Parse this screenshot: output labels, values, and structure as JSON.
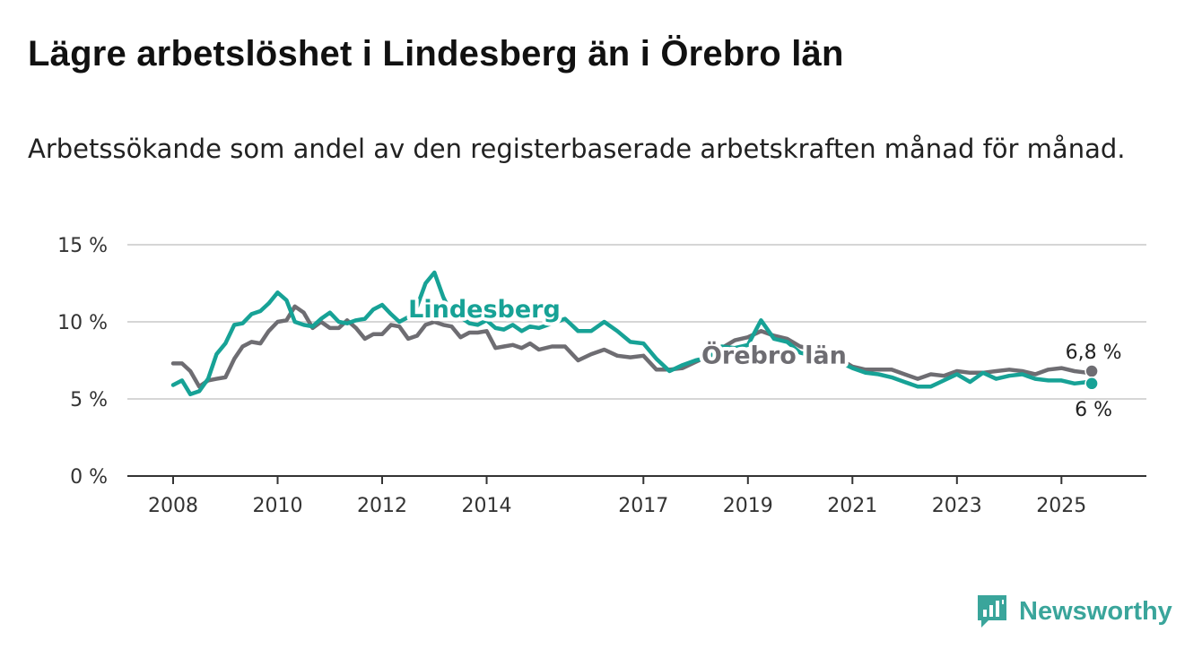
{
  "title": "Lägre arbetslöshet i Lindesberg än i Örebro län",
  "subtitle": "Arbetssökande som andel av den registerbaserade arbetskraften månad för månad.",
  "brand": {
    "name": "Newsworthy",
    "color": "#3aa59b"
  },
  "chart_data": {
    "type": "line",
    "title": "Lägre arbetslöshet i Lindesberg än i Örebro län",
    "ylim": [
      0,
      15
    ],
    "y_ticks": [
      {
        "value": 0,
        "label": "0 %"
      },
      {
        "value": 5,
        "label": "5 %"
      },
      {
        "value": 10,
        "label": "10 %"
      },
      {
        "value": 15,
        "label": "15 %"
      }
    ],
    "xlim": [
      2008.0,
      2025.75
    ],
    "x_ticks": [
      {
        "value": 2008,
        "label": "2008"
      },
      {
        "value": 2010,
        "label": "2010"
      },
      {
        "value": 2012,
        "label": "2012"
      },
      {
        "value": 2014,
        "label": "2014"
      },
      {
        "value": 2017,
        "label": "2017"
      },
      {
        "value": 2019,
        "label": "2019"
      },
      {
        "value": 2021,
        "label": "2021"
      },
      {
        "value": 2023,
        "label": "2023"
      },
      {
        "value": 2025,
        "label": "2025"
      }
    ],
    "grid": true,
    "series": [
      {
        "name": "Örebro län",
        "color": "#6e6d72",
        "end_label": "6,8 %",
        "x": [
          2008.0,
          2008.17,
          2008.33,
          2008.5,
          2008.67,
          2008.83,
          2009.0,
          2009.17,
          2009.33,
          2009.5,
          2009.67,
          2009.83,
          2010.0,
          2010.17,
          2010.33,
          2010.5,
          2010.67,
          2010.83,
          2011.0,
          2011.17,
          2011.33,
          2011.5,
          2011.67,
          2011.83,
          2012.0,
          2012.17,
          2012.33,
          2012.5,
          2012.67,
          2012.83,
          2013.0,
          2013.17,
          2013.33,
          2013.5,
          2013.67,
          2013.83,
          2014.0,
          2014.17,
          2014.33,
          2014.5,
          2014.67,
          2014.83,
          2015.0,
          2015.25,
          2015.5,
          2015.75,
          2016.0,
          2016.25,
          2016.5,
          2016.75,
          2017.0,
          2017.25,
          2017.5,
          2017.75,
          2018.0,
          2018.25,
          2018.5,
          2018.75,
          2019.0,
          2019.25,
          2019.5,
          2019.75,
          2020.0,
          2020.25,
          2020.5,
          2020.75,
          2021.0,
          2021.25,
          2021.5,
          2021.75,
          2022.0,
          2022.25,
          2022.5,
          2022.75,
          2023.0,
          2023.25,
          2023.5,
          2023.75,
          2024.0,
          2024.25,
          2024.5,
          2024.75,
          2025.0,
          2025.25,
          2025.5,
          2025.58
        ],
        "values": [
          7.3,
          7.3,
          6.8,
          5.8,
          6.2,
          6.3,
          6.4,
          7.6,
          8.4,
          8.7,
          8.6,
          9.4,
          10.0,
          10.1,
          11.0,
          10.6,
          9.6,
          10.0,
          9.6,
          9.6,
          10.1,
          9.6,
          8.9,
          9.2,
          9.2,
          9.8,
          9.7,
          8.9,
          9.1,
          9.8,
          10.0,
          9.8,
          9.7,
          9.0,
          9.3,
          9.3,
          9.4,
          8.3,
          8.4,
          8.5,
          8.3,
          8.6,
          8.2,
          8.4,
          8.4,
          7.5,
          7.9,
          8.2,
          7.8,
          7.7,
          7.8,
          6.9,
          6.9,
          7.0,
          7.4,
          7.8,
          8.3,
          8.8,
          9.0,
          9.4,
          9.1,
          8.9,
          8.4,
          8.2,
          7.7,
          7.6,
          7.1,
          6.9,
          6.9,
          6.9,
          6.6,
          6.3,
          6.6,
          6.5,
          6.8,
          6.7,
          6.7,
          6.8,
          6.9,
          6.8,
          6.6,
          6.9,
          7.0,
          6.8,
          6.7,
          6.8
        ]
      },
      {
        "name": "Lindesberg",
        "color": "#17a296",
        "end_label": "6 %",
        "x": [
          2008.0,
          2008.17,
          2008.33,
          2008.5,
          2008.67,
          2008.83,
          2009.0,
          2009.17,
          2009.33,
          2009.5,
          2009.67,
          2009.83,
          2010.0,
          2010.17,
          2010.33,
          2010.5,
          2010.67,
          2010.83,
          2011.0,
          2011.17,
          2011.33,
          2011.5,
          2011.67,
          2011.83,
          2012.0,
          2012.17,
          2012.33,
          2012.5,
          2012.67,
          2012.83,
          2013.0,
          2013.17,
          2013.33,
          2013.5,
          2013.67,
          2013.83,
          2014.0,
          2014.17,
          2014.33,
          2014.5,
          2014.67,
          2014.83,
          2015.0,
          2015.25,
          2015.5,
          2015.75,
          2016.0,
          2016.25,
          2016.5,
          2016.75,
          2017.0,
          2017.25,
          2017.5,
          2017.75,
          2018.0,
          2018.25,
          2018.5,
          2018.75,
          2019.0,
          2019.25,
          2019.5,
          2019.75,
          2020.0,
          2020.25,
          2020.5,
          2020.75,
          2021.0,
          2021.25,
          2021.5,
          2021.75,
          2022.0,
          2022.25,
          2022.5,
          2022.75,
          2023.0,
          2023.25,
          2023.5,
          2023.75,
          2024.0,
          2024.25,
          2024.5,
          2024.75,
          2025.0,
          2025.25,
          2025.5,
          2025.58
        ],
        "values": [
          5.9,
          6.2,
          5.3,
          5.5,
          6.3,
          7.9,
          8.6,
          9.8,
          9.9,
          10.5,
          10.7,
          11.2,
          11.9,
          11.4,
          10.0,
          9.8,
          9.7,
          10.2,
          10.6,
          10.0,
          9.9,
          10.1,
          10.2,
          10.8,
          11.1,
          10.5,
          10.0,
          10.3,
          11.0,
          12.5,
          13.2,
          11.6,
          10.5,
          10.3,
          9.9,
          9.8,
          10.1,
          9.6,
          9.5,
          9.8,
          9.4,
          9.7,
          9.6,
          9.9,
          10.2,
          9.4,
          9.4,
          10.0,
          9.4,
          8.7,
          8.6,
          7.6,
          6.8,
          7.2,
          7.5,
          7.7,
          8.4,
          8.3,
          8.5,
          10.1,
          8.9,
          8.7,
          8.0,
          7.8,
          7.6,
          7.4,
          7.0,
          6.7,
          6.6,
          6.4,
          6.1,
          5.8,
          5.8,
          6.2,
          6.6,
          6.1,
          6.7,
          6.3,
          6.5,
          6.6,
          6.3,
          6.2,
          6.2,
          6.0,
          6.1,
          6.0
        ]
      }
    ]
  }
}
